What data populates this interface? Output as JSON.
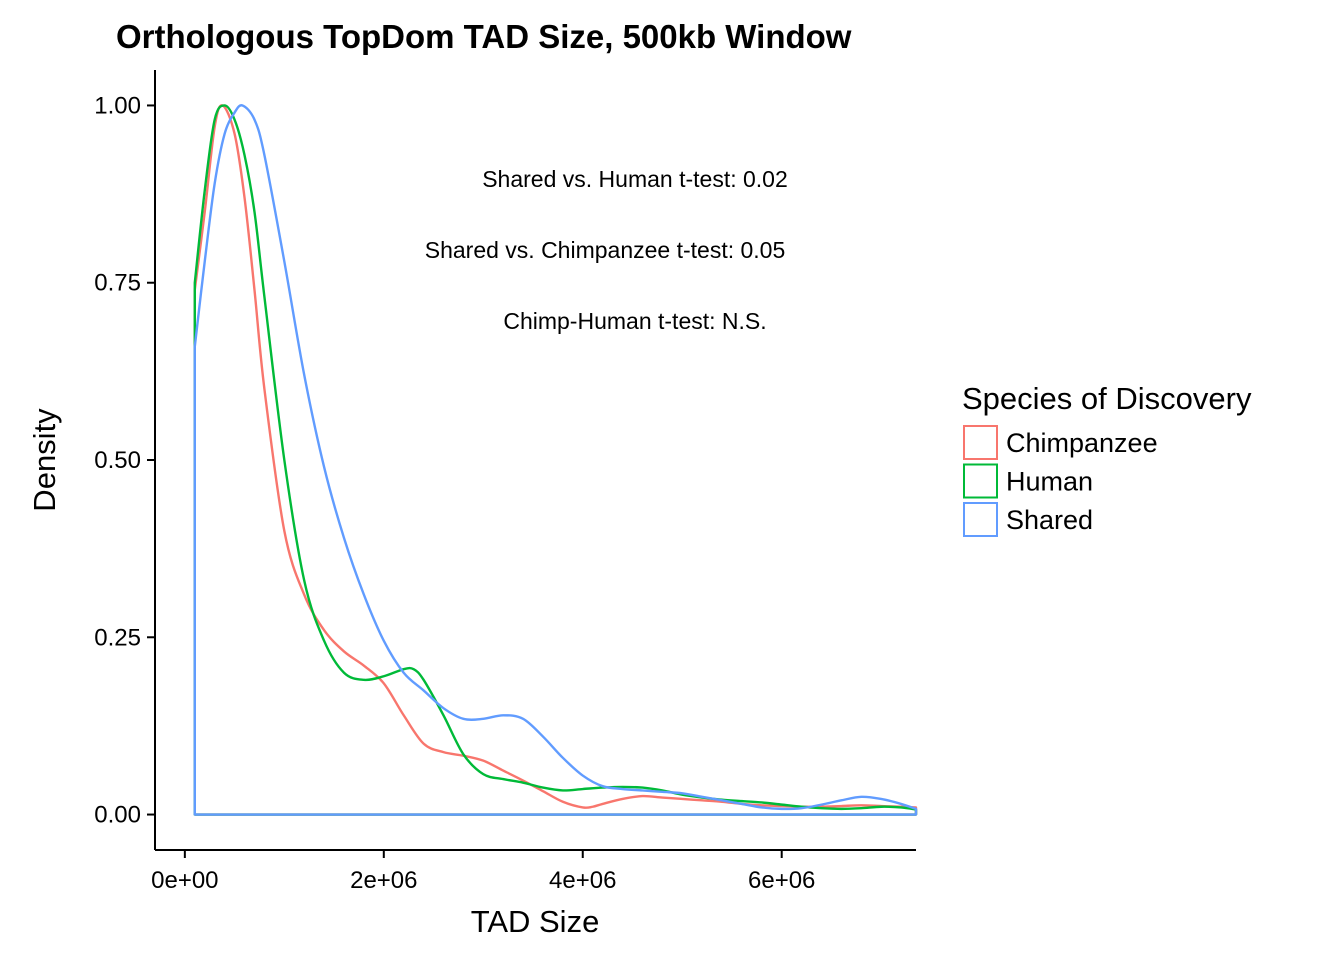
{
  "chart_data": {
    "type": "area",
    "title": "Orthologous TopDom TAD Size, 500kb Window",
    "xlabel": "TAD Size",
    "ylabel": "Density",
    "xlim": [
      -300000,
      7350000
    ],
    "ylim": [
      -0.05,
      1.05
    ],
    "x_ticks": [
      0,
      2000000,
      4000000,
      6000000
    ],
    "x_tick_labels": [
      "0e+00",
      "2e+06",
      "4e+06",
      "6e+06"
    ],
    "y_ticks": [
      0,
      0.25,
      0.5,
      0.75,
      1.0
    ],
    "y_tick_labels": [
      "0.00",
      "0.25",
      "0.50",
      "0.75",
      "1.00"
    ],
    "grid": false,
    "legend_position": "right",
    "legend_title": "Species of Discovery",
    "annotations": [
      "Shared vs. Human t-test: 0.02",
      "Shared vs. Chimpanzee t-test: 0.05",
      "Chimp-Human t-test: N.S."
    ],
    "series": [
      {
        "name": "Chimpanzee",
        "color": "#F8766D",
        "x": [
          100000,
          200000,
          300000,
          380000,
          500000,
          600000,
          700000,
          800000,
          1000000,
          1200000,
          1400000,
          1600000,
          1800000,
          2000000,
          2200000,
          2400000,
          2600000,
          2800000,
          3000000,
          3200000,
          3400000,
          3600000,
          3800000,
          4000000,
          4100000,
          4200000,
          4400000,
          4600000,
          4800000,
          5000000,
          5200000,
          5400000,
          5600000,
          5800000,
          6000000,
          6200000,
          6400000,
          6600000,
          6800000,
          7000000,
          7200000,
          7350000
        ],
        "values": [
          0.74,
          0.85,
          0.97,
          1.0,
          0.96,
          0.87,
          0.74,
          0.6,
          0.4,
          0.31,
          0.26,
          0.23,
          0.21,
          0.185,
          0.14,
          0.1,
          0.088,
          0.083,
          0.076,
          0.062,
          0.048,
          0.033,
          0.018,
          0.01,
          0.011,
          0.015,
          0.022,
          0.026,
          0.024,
          0.022,
          0.02,
          0.018,
          0.015,
          0.013,
          0.012,
          0.011,
          0.011,
          0.012,
          0.013,
          0.012,
          0.011,
          0.01
        ]
      },
      {
        "name": "Human",
        "color": "#00BA38",
        "x": [
          100000,
          200000,
          300000,
          400000,
          500000,
          600000,
          700000,
          800000,
          1000000,
          1200000,
          1400000,
          1600000,
          1800000,
          2000000,
          2200000,
          2300000,
          2400000,
          2600000,
          2800000,
          3000000,
          3200000,
          3400000,
          3600000,
          3800000,
          4000000,
          4200000,
          4400000,
          4600000,
          4800000,
          5000000,
          5200000,
          5400000,
          5600000,
          5800000,
          6000000,
          6200000,
          6400000,
          6600000,
          6800000,
          7000000,
          7200000,
          7350000
        ],
        "values": [
          0.75,
          0.88,
          0.98,
          1.0,
          0.98,
          0.93,
          0.85,
          0.73,
          0.5,
          0.33,
          0.245,
          0.2,
          0.19,
          0.195,
          0.205,
          0.205,
          0.19,
          0.14,
          0.085,
          0.057,
          0.05,
          0.045,
          0.038,
          0.034,
          0.036,
          0.038,
          0.039,
          0.038,
          0.034,
          0.028,
          0.024,
          0.021,
          0.019,
          0.017,
          0.014,
          0.011,
          0.009,
          0.008,
          0.009,
          0.011,
          0.01,
          0.007
        ]
      },
      {
        "name": "Shared",
        "color": "#619CFF",
        "x": [
          100000,
          200000,
          300000,
          400000,
          500000,
          580000,
          700000,
          800000,
          1000000,
          1200000,
          1400000,
          1600000,
          1800000,
          2000000,
          2200000,
          2400000,
          2600000,
          2800000,
          3000000,
          3200000,
          3400000,
          3600000,
          3800000,
          4000000,
          4200000,
          4400000,
          4600000,
          4800000,
          5000000,
          5200000,
          5400000,
          5600000,
          5800000,
          6000000,
          6200000,
          6400000,
          6600000,
          6800000,
          7000000,
          7200000,
          7350000
        ],
        "values": [
          0.66,
          0.78,
          0.89,
          0.96,
          0.99,
          1.0,
          0.98,
          0.93,
          0.78,
          0.62,
          0.49,
          0.39,
          0.31,
          0.245,
          0.2,
          0.175,
          0.15,
          0.135,
          0.135,
          0.14,
          0.135,
          0.11,
          0.08,
          0.055,
          0.04,
          0.036,
          0.034,
          0.032,
          0.03,
          0.025,
          0.02,
          0.015,
          0.01,
          0.008,
          0.009,
          0.014,
          0.02,
          0.025,
          0.022,
          0.015,
          0.008
        ]
      }
    ]
  }
}
